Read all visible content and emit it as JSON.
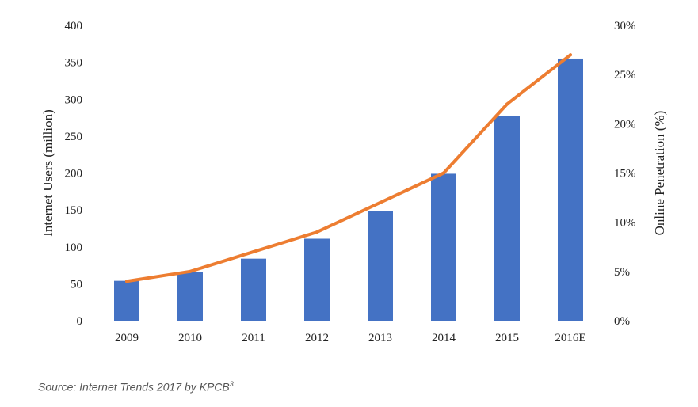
{
  "chart_data": {
    "type": "bar+line",
    "categories": [
      "2009",
      "2010",
      "2011",
      "2012",
      "2013",
      "2014",
      "2015",
      "2016E"
    ],
    "series": [
      {
        "name": "Internet Users (million)",
        "type": "bar",
        "axis": "left",
        "color": "#4472C4",
        "values": [
          54,
          66,
          84,
          111,
          149,
          199,
          277,
          355
        ]
      },
      {
        "name": "Online Penetration (%)",
        "type": "line",
        "axis": "right",
        "color": "#ED7D31",
        "values": [
          4,
          5,
          7,
          9,
          12,
          15,
          22,
          27
        ]
      }
    ],
    "ylabel": "Internet Users (million)",
    "y2label": "Online Penetration (%)",
    "ylim": [
      0,
      400
    ],
    "y2lim": [
      0,
      30
    ],
    "yticks": [
      "0",
      "50",
      "100",
      "150",
      "200",
      "250",
      "300",
      "350",
      "400"
    ],
    "y2ticks": [
      "0%",
      "5%",
      "10%",
      "15%",
      "20%",
      "25%",
      "30%"
    ],
    "grid": false,
    "legend": "none"
  },
  "source": {
    "text": "Source: Internet Trends 2017 by KPCB",
    "superscript": "3"
  }
}
